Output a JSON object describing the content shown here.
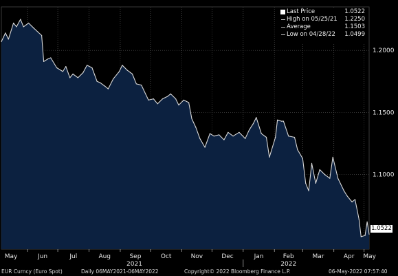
{
  "legend": {
    "items": [
      {
        "label": "Last Price",
        "value": "1.0522",
        "marker": "swatch"
      },
      {
        "label": "High on 05/25/21",
        "value": "1.2250",
        "marker": "dash"
      },
      {
        "label": "Average",
        "value": "1.1503",
        "marker": "dash"
      },
      {
        "label": "Low on 04/28/22",
        "value": "1.0499",
        "marker": "dash"
      }
    ]
  },
  "last_price_badge": "1.0522",
  "footer": {
    "security": "EUR Curncy (Euro Spot)",
    "period": "Daily 06MAY2021-06MAY2022",
    "copyright": "Copyright© 2022 Bloomberg Finance L.P.",
    "timestamp": "06-May-2022 07:57:40"
  },
  "colors": {
    "background": "#000000",
    "area_fill": "#0c2140",
    "line": "#d9d9d9",
    "grid": "#555555"
  },
  "chart_data": {
    "type": "area",
    "grid": true,
    "ylim": [
      1.04,
      1.235
    ],
    "ytick_labels": [
      "1.2000",
      "1.1500",
      "1.1000"
    ],
    "yticks": [
      1.2,
      1.15,
      1.1
    ],
    "x_month_labels": [
      "May",
      "Jun",
      "Jul",
      "Aug",
      "Sep",
      "Oct",
      "Nov",
      "Dec",
      "Jan",
      "Feb",
      "Mar",
      "Apr",
      "May"
    ],
    "x_month_starts": [
      "2021-05-01",
      "2021-06-01",
      "2021-07-01",
      "2021-08-01",
      "2021-09-01",
      "2021-10-01",
      "2021-11-01",
      "2021-12-01",
      "2022-01-01",
      "2022-02-01",
      "2022-03-01",
      "2022-04-01",
      "2022-05-01"
    ],
    "x_year_labels": [
      "2021",
      "2022"
    ],
    "x_year_dates": [
      "2021-09-15",
      "2022-02-15"
    ],
    "xlim": [
      "2021-05-06",
      "2022-05-06"
    ],
    "series": [
      {
        "x": [
          "2021-05-06",
          "2021-05-10",
          "2021-05-13",
          "2021-05-18",
          "2021-05-21",
          "2021-05-25",
          "2021-05-28",
          "2021-06-02",
          "2021-06-07",
          "2021-06-11",
          "2021-06-15",
          "2021-06-17",
          "2021-06-21",
          "2021-06-24",
          "2021-06-30",
          "2021-07-06",
          "2021-07-09",
          "2021-07-13",
          "2021-07-16",
          "2021-07-21",
          "2021-07-26",
          "2021-07-30",
          "2021-08-04",
          "2021-08-09",
          "2021-08-12",
          "2021-08-17",
          "2021-08-20",
          "2021-08-25",
          "2021-08-31",
          "2021-09-03",
          "2021-09-08",
          "2021-09-13",
          "2021-09-17",
          "2021-09-22",
          "2021-09-29",
          "2021-10-04",
          "2021-10-08",
          "2021-10-13",
          "2021-10-18",
          "2021-10-21",
          "2021-10-26",
          "2021-10-29",
          "2021-11-03",
          "2021-11-08",
          "2021-11-11",
          "2021-11-15",
          "2021-11-19",
          "2021-11-24",
          "2021-11-29",
          "2021-12-03",
          "2021-12-08",
          "2021-12-13",
          "2021-12-17",
          "2021-12-22",
          "2021-12-28",
          "2022-01-03",
          "2022-01-07",
          "2022-01-11",
          "2022-01-14",
          "2022-01-19",
          "2022-01-24",
          "2022-01-27",
          "2022-02-02",
          "2022-02-04",
          "2022-02-08",
          "2022-02-10",
          "2022-02-15",
          "2022-02-21",
          "2022-02-24",
          "2022-03-01",
          "2022-03-04",
          "2022-03-07",
          "2022-03-10",
          "2022-03-14",
          "2022-03-18",
          "2022-03-23",
          "2022-03-28",
          "2022-03-31",
          "2022-04-05",
          "2022-04-11",
          "2022-04-14",
          "2022-04-19",
          "2022-04-22",
          "2022-04-26",
          "2022-04-28",
          "2022-05-02",
          "2022-05-04",
          "2022-05-06"
        ],
        "y": [
          1.207,
          1.214,
          1.209,
          1.222,
          1.219,
          1.225,
          1.219,
          1.222,
          1.218,
          1.215,
          1.212,
          1.191,
          1.193,
          1.194,
          1.186,
          1.183,
          1.187,
          1.178,
          1.181,
          1.178,
          1.182,
          1.188,
          1.186,
          1.175,
          1.174,
          1.171,
          1.169,
          1.177,
          1.183,
          1.188,
          1.184,
          1.181,
          1.173,
          1.172,
          1.16,
          1.161,
          1.157,
          1.161,
          1.163,
          1.165,
          1.161,
          1.156,
          1.16,
          1.158,
          1.145,
          1.138,
          1.129,
          1.122,
          1.133,
          1.131,
          1.132,
          1.128,
          1.134,
          1.131,
          1.134,
          1.129,
          1.136,
          1.141,
          1.146,
          1.133,
          1.13,
          1.114,
          1.13,
          1.144,
          1.143,
          1.143,
          1.131,
          1.13,
          1.12,
          1.113,
          1.093,
          1.087,
          1.109,
          1.093,
          1.104,
          1.1,
          1.097,
          1.114,
          1.097,
          1.087,
          1.083,
          1.078,
          1.08,
          1.064,
          1.05,
          1.051,
          1.062,
          1.052
        ]
      }
    ]
  }
}
